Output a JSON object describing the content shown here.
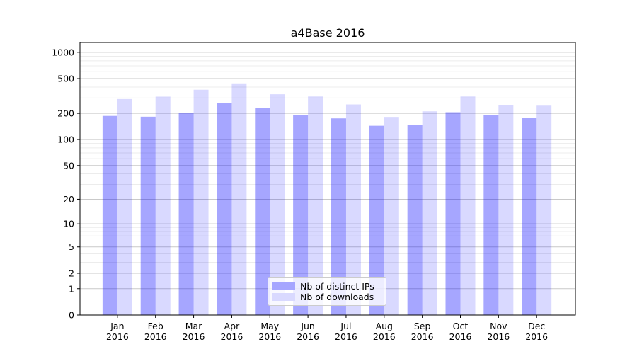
{
  "title": "a4Base 2016",
  "chart_data": {
    "type": "bar",
    "title": "a4Base 2016",
    "categories": [
      "Jan",
      "Feb",
      "Mar",
      "Apr",
      "May",
      "Jun",
      "Jul",
      "Aug",
      "Sep",
      "Oct",
      "Nov",
      "Dec"
    ],
    "x_tick_second_line": "2016",
    "series": [
      {
        "name": "Nb of distinct IPs",
        "color": "#0000ff",
        "alpha": 0.35,
        "values": [
          187,
          183,
          201,
          262,
          229,
          192,
          175,
          144,
          148,
          206,
          192,
          179
        ]
      },
      {
        "name": "Nb of downloads",
        "color": "#0000ff",
        "alpha": 0.15,
        "values": [
          292,
          311,
          373,
          441,
          331,
          312,
          253,
          182,
          211,
          312,
          250,
          245
        ]
      }
    ],
    "yscale": "log(1+y)",
    "ytick_values": [
      0,
      1,
      2,
      5,
      10,
      20,
      50,
      100,
      200,
      500,
      1000
    ],
    "ylim": [
      0,
      1280
    ],
    "grid": true,
    "legend_position": "lower-center-inside"
  },
  "colors": {
    "bar_ips_composite": "#a6a6ff",
    "bar_downloads_composite": "#d9d9ff",
    "grid_major": "#c9c9c9",
    "grid_minor": "#ececec",
    "spine": "#000000",
    "background": "#ffffff",
    "text": "#000000"
  }
}
